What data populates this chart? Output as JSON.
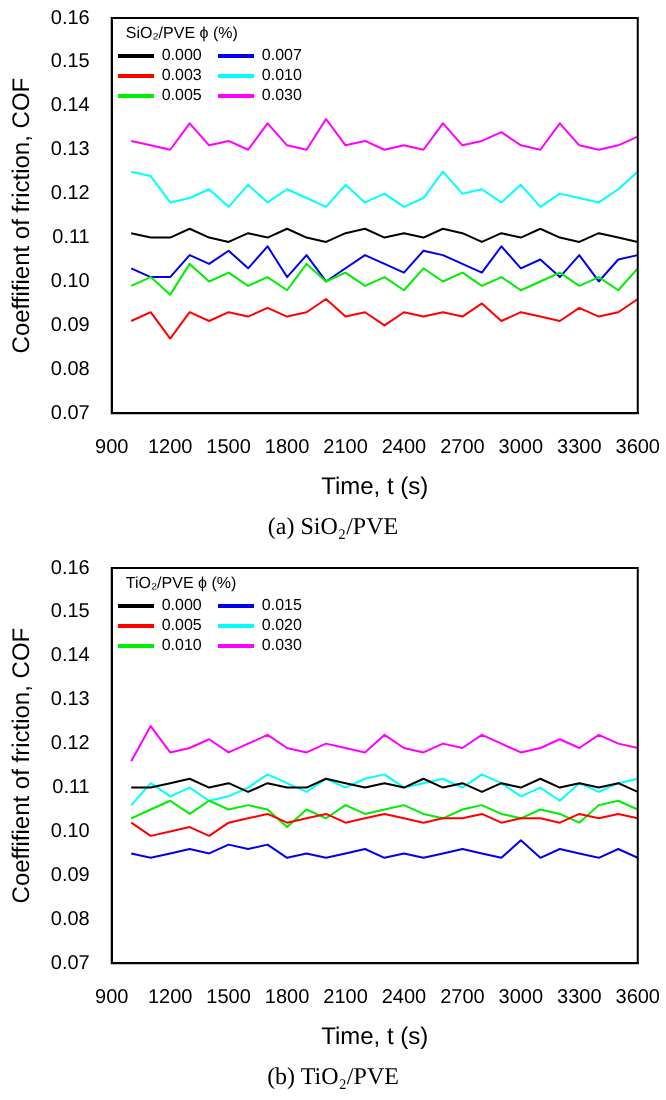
{
  "chart_data": [
    {
      "type": "line",
      "xlabel": "Time, t (s)",
      "ylabel": "Coeffifient of friction, COF",
      "legend_title": "SiO₂/PVE ϕ (%)",
      "legend": "top left",
      "grid": false,
      "annotations": [
        "(a) SiO₂/PVE"
      ],
      "xlim": [
        900,
        3600
      ],
      "xticks": [
        900,
        1200,
        1500,
        1800,
        2100,
        2400,
        2700,
        3000,
        3300,
        3600
      ],
      "ylim": [
        0.07,
        0.16
      ],
      "yticks": [
        0.07,
        0.08,
        0.09,
        {
          "value": 0.1,
          "label": "0.10"
        },
        0.11,
        0.12,
        0.13,
        0.14,
        0.15,
        0.16
      ],
      "x": [
        1000,
        1100,
        1200,
        1300,
        1400,
        1500,
        1600,
        1700,
        1800,
        1900,
        2000,
        2100,
        2200,
        2300,
        2400,
        2500,
        2600,
        2700,
        2800,
        2900,
        3000,
        3100,
        3200,
        3300,
        3400,
        3500,
        3600
      ],
      "series": [
        {
          "name": "0.000",
          "color": "#000000",
          "values": [
            0.111,
            0.11,
            0.11,
            0.112,
            0.11,
            0.109,
            0.111,
            0.11,
            0.112,
            0.11,
            0.109,
            0.111,
            0.112,
            0.11,
            0.111,
            0.11,
            0.112,
            0.111,
            0.109,
            0.111,
            0.11,
            0.112,
            0.11,
            0.109,
            0.111,
            0.11,
            0.109
          ]
        },
        {
          "name": "0.003",
          "color": "#ff0000",
          "values": [
            0.091,
            0.093,
            0.087,
            0.093,
            0.091,
            0.093,
            0.092,
            0.094,
            0.092,
            0.093,
            0.096,
            0.092,
            0.093,
            0.09,
            0.093,
            0.092,
            0.093,
            0.092,
            0.095,
            0.091,
            0.093,
            0.092,
            0.091,
            0.094,
            0.092,
            0.093,
            0.096
          ]
        },
        {
          "name": "0.005",
          "color": "#00ee00",
          "values": [
            0.099,
            0.101,
            0.097,
            0.104,
            0.1,
            0.102,
            0.099,
            0.101,
            0.098,
            0.104,
            0.1,
            0.102,
            0.099,
            0.101,
            0.098,
            0.103,
            0.1,
            0.102,
            0.099,
            0.101,
            0.098,
            0.1,
            0.102,
            0.099,
            0.101,
            0.098,
            0.103
          ]
        },
        {
          "name": "0.007",
          "color": "#0000ee",
          "values": [
            0.103,
            0.101,
            0.101,
            0.106,
            0.104,
            0.107,
            0.103,
            0.108,
            0.101,
            0.106,
            0.1,
            0.103,
            0.106,
            0.104,
            0.102,
            0.107,
            0.106,
            0.104,
            0.102,
            0.108,
            0.103,
            0.105,
            0.101,
            0.106,
            0.1,
            0.105,
            0.106
          ]
        },
        {
          "name": "0.010",
          "color": "#00ffff",
          "values": [
            0.125,
            0.124,
            0.118,
            0.119,
            0.121,
            0.117,
            0.122,
            0.118,
            0.121,
            0.119,
            0.117,
            0.122,
            0.118,
            0.12,
            0.117,
            0.119,
            0.125,
            0.12,
            0.121,
            0.118,
            0.122,
            0.117,
            0.12,
            0.119,
            0.118,
            0.121,
            0.125
          ]
        },
        {
          "name": "0.030",
          "color": "#ff00ff",
          "values": [
            0.132,
            0.131,
            0.13,
            0.136,
            0.131,
            0.132,
            0.13,
            0.136,
            0.131,
            0.13,
            0.137,
            0.131,
            0.132,
            0.13,
            0.131,
            0.13,
            0.136,
            0.131,
            0.132,
            0.134,
            0.131,
            0.13,
            0.136,
            0.131,
            0.13,
            0.131,
            0.133
          ]
        }
      ]
    },
    {
      "type": "line",
      "xlabel": "Time, t (s)",
      "ylabel": "Coeffifient of friction, COF",
      "legend_title": "TiO₂/PVE ϕ (%)",
      "legend": "top left",
      "grid": false,
      "annotations": [
        "(b) TiO₂/PVE"
      ],
      "xlim": [
        900,
        3600
      ],
      "xticks": [
        900,
        1200,
        1500,
        1800,
        2100,
        2400,
        2700,
        3000,
        3300,
        3600
      ],
      "ylim": [
        0.07,
        0.16
      ],
      "yticks": [
        0.07,
        0.08,
        0.09,
        {
          "value": 0.1,
          "label": "0.10"
        },
        0.11,
        0.12,
        0.13,
        0.14,
        0.15,
        0.16
      ],
      "x": [
        1000,
        1100,
        1200,
        1300,
        1400,
        1500,
        1600,
        1700,
        1800,
        1900,
        2000,
        2100,
        2200,
        2300,
        2400,
        2500,
        2600,
        2700,
        2800,
        2900,
        3000,
        3100,
        3200,
        3300,
        3400,
        3500,
        3600
      ],
      "series": [
        {
          "name": "0.000",
          "color": "#000000",
          "values": [
            0.11,
            0.11,
            0.111,
            0.112,
            0.11,
            0.111,
            0.109,
            0.111,
            0.11,
            0.11,
            0.112,
            0.111,
            0.11,
            0.111,
            0.11,
            0.112,
            0.11,
            0.111,
            0.109,
            0.111,
            0.11,
            0.112,
            0.11,
            0.111,
            0.11,
            0.111,
            0.109
          ]
        },
        {
          "name": "0.005",
          "color": "#ff0000",
          "values": [
            0.102,
            0.099,
            0.1,
            0.101,
            0.099,
            0.102,
            0.103,
            0.104,
            0.102,
            0.103,
            0.104,
            0.102,
            0.103,
            0.104,
            0.103,
            0.102,
            0.103,
            0.103,
            0.104,
            0.102,
            0.103,
            0.103,
            0.102,
            0.104,
            0.103,
            0.104,
            0.103
          ]
        },
        {
          "name": "0.010",
          "color": "#00ee00",
          "values": [
            0.103,
            0.105,
            0.107,
            0.104,
            0.107,
            0.105,
            0.106,
            0.105,
            0.101,
            0.105,
            0.103,
            0.106,
            0.104,
            0.105,
            0.106,
            0.104,
            0.103,
            0.105,
            0.106,
            0.104,
            0.103,
            0.105,
            0.104,
            0.102,
            0.106,
            0.107,
            0.105
          ]
        },
        {
          "name": "0.015",
          "color": "#0000ee",
          "values": [
            0.095,
            0.094,
            0.095,
            0.096,
            0.095,
            0.097,
            0.096,
            0.097,
            0.094,
            0.095,
            0.094,
            0.095,
            0.096,
            0.094,
            0.095,
            0.094,
            0.095,
            0.096,
            0.095,
            0.094,
            0.098,
            0.094,
            0.096,
            0.095,
            0.094,
            0.096,
            0.094
          ]
        },
        {
          "name": "0.020",
          "color": "#00ffff",
          "values": [
            0.106,
            0.111,
            0.108,
            0.11,
            0.107,
            0.108,
            0.11,
            0.113,
            0.111,
            0.109,
            0.112,
            0.11,
            0.112,
            0.113,
            0.11,
            0.111,
            0.112,
            0.11,
            0.113,
            0.111,
            0.108,
            0.11,
            0.107,
            0.111,
            0.109,
            0.111,
            0.112
          ]
        },
        {
          "name": "0.030",
          "color": "#ff00ff",
          "values": [
            0.116,
            0.124,
            0.118,
            0.119,
            0.121,
            0.118,
            0.12,
            0.122,
            0.119,
            0.118,
            0.12,
            0.119,
            0.118,
            0.122,
            0.119,
            0.118,
            0.12,
            0.119,
            0.122,
            0.12,
            0.118,
            0.119,
            0.121,
            0.119,
            0.122,
            0.12,
            0.119
          ]
        }
      ]
    }
  ]
}
